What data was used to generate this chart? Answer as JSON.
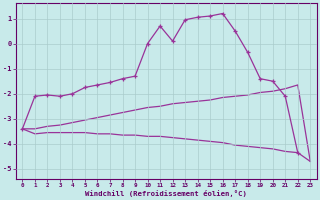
{
  "xlabel": "Windchill (Refroidissement éolien,°C)",
  "bg_color": "#c8eaea",
  "line_color": "#993399",
  "grid_color": "#aacccc",
  "xlim": [
    -0.5,
    23.5
  ],
  "ylim": [
    -5.4,
    1.6
  ],
  "yticks": [
    -5,
    -4,
    -3,
    -2,
    -1,
    0,
    1
  ],
  "xticks": [
    0,
    1,
    2,
    3,
    4,
    5,
    6,
    7,
    8,
    9,
    10,
    11,
    12,
    13,
    14,
    15,
    16,
    17,
    18,
    19,
    20,
    21,
    22,
    23
  ],
  "curve1_x": [
    0,
    1,
    2,
    3,
    4,
    5,
    6,
    7,
    8,
    9,
    10,
    11,
    12,
    13,
    14,
    15,
    16,
    17,
    18,
    19,
    20,
    21,
    22
  ],
  "curve1_y": [
    -3.4,
    -2.1,
    -2.05,
    -2.1,
    -2.0,
    -1.75,
    -1.65,
    -1.55,
    -1.4,
    -1.3,
    0.0,
    0.7,
    0.1,
    0.95,
    1.05,
    1.1,
    1.2,
    0.5,
    -0.35,
    -1.4,
    -1.5,
    -2.1,
    -4.35
  ],
  "curve2_x": [
    0,
    1,
    2,
    3,
    4,
    5,
    6,
    7,
    8,
    9,
    10,
    11,
    12,
    13,
    14,
    15,
    16,
    17,
    18,
    19,
    20,
    21,
    22,
    23
  ],
  "curve2_y": [
    -3.4,
    -3.6,
    -3.55,
    -3.55,
    -3.55,
    -3.55,
    -3.6,
    -3.6,
    -3.65,
    -3.65,
    -3.7,
    -3.7,
    -3.75,
    -3.8,
    -3.85,
    -3.9,
    -3.95,
    -4.05,
    -4.1,
    -4.15,
    -4.2,
    -4.3,
    -4.35,
    -4.7
  ],
  "curve3_x": [
    0,
    1,
    2,
    3,
    4,
    5,
    6,
    7,
    8,
    9,
    10,
    11,
    12,
    13,
    14,
    15,
    16,
    17,
    18,
    19,
    20,
    21,
    22,
    23
  ],
  "curve3_y": [
    -3.4,
    -3.4,
    -3.3,
    -3.25,
    -3.15,
    -3.05,
    -2.95,
    -2.85,
    -2.75,
    -2.65,
    -2.55,
    -2.5,
    -2.4,
    -2.35,
    -2.3,
    -2.25,
    -2.15,
    -2.1,
    -2.05,
    -1.95,
    -1.9,
    -1.8,
    -1.65,
    -4.7
  ]
}
